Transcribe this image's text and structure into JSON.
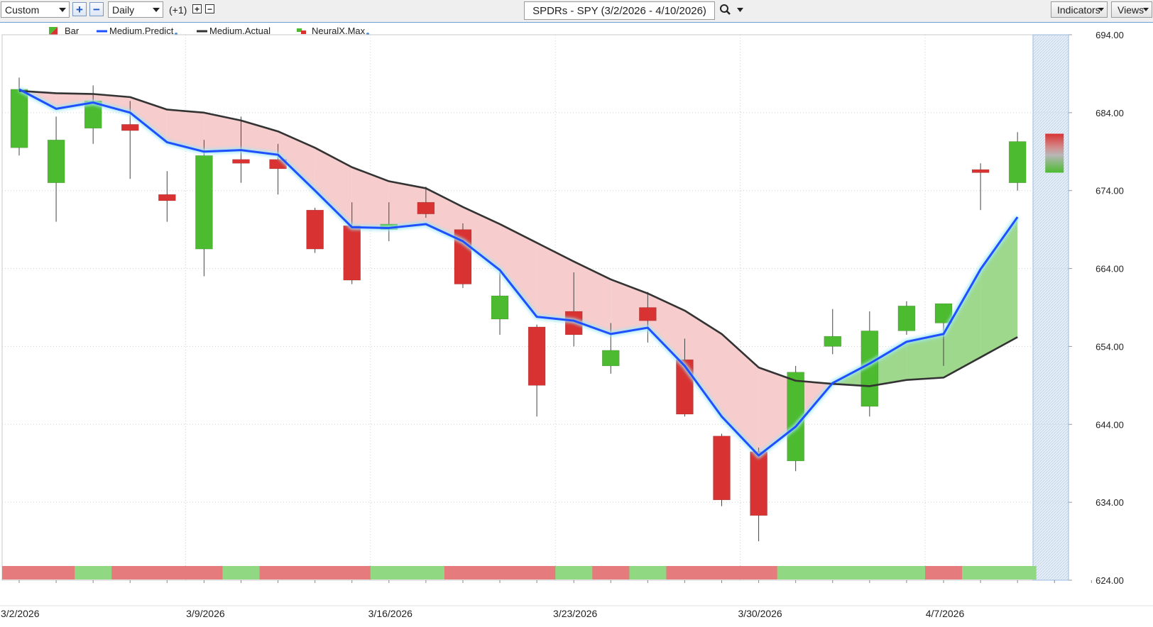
{
  "toolbar": {
    "range_select": "Custom",
    "zoom_in": "+",
    "zoom_out": "−",
    "interval_select": "Daily",
    "offset_label": "(+1)",
    "offset_plus": "+",
    "offset_minus": "−",
    "title": "SPDRs - SPY (3/2/2026 - 4/10/2026)",
    "search_icon": "⌕",
    "indicators_label": "Indicators",
    "views_label": "Views"
  },
  "legend": [
    {
      "label": "Bar",
      "icon": "bar-swatch-icon"
    },
    {
      "label": "Medium.Predict",
      "icon": "blue-line-icon",
      "has_dot": true
    },
    {
      "label": "Medium.Actual",
      "icon": "dark-line-icon"
    },
    {
      "label": "NeuralX.Max",
      "icon": "neuralx-swatch-icon",
      "has_dot": true
    }
  ],
  "colors": {
    "up": "#4cbb2f",
    "down": "#d93232",
    "predict_line": "#1f4fff",
    "actual_line": "#333333",
    "fill_above": "#f6cccc",
    "fill_below": "#9ed88d",
    "strip_red": "#e67b7e",
    "strip_green": "#90d882"
  },
  "chart_data": {
    "type": "candlestick",
    "ylim": [
      624,
      694
    ],
    "yticks": [
      "694.00",
      "684.00",
      "674.00",
      "664.00",
      "654.00",
      "644.00",
      "634.00",
      "624.00"
    ],
    "xtick_labels": [
      {
        "label": "3/2/2026",
        "index": 0
      },
      {
        "label": "3/9/2026",
        "index": 5
      },
      {
        "label": "3/16/2026",
        "index": 10
      },
      {
        "label": "3/23/2026",
        "index": 15
      },
      {
        "label": "3/30/2026",
        "index": 20
      },
      {
        "label": "4/7/2026",
        "index": 25
      }
    ],
    "candles": [
      {
        "o": 679.5,
        "h": 688.5,
        "l": 678.5,
        "c": 687.0
      },
      {
        "o": 675.0,
        "h": 683.5,
        "l": 670.0,
        "c": 680.5
      },
      {
        "o": 682.0,
        "h": 687.5,
        "l": 680.0,
        "c": 685.5
      },
      {
        "o": 682.5,
        "h": 685.5,
        "l": 675.5,
        "c": 681.7
      },
      {
        "o": 673.5,
        "h": 676.5,
        "l": 670.0,
        "c": 672.7
      },
      {
        "o": 666.5,
        "h": 680.5,
        "l": 663.0,
        "c": 678.5
      },
      {
        "o": 678.0,
        "h": 683.5,
        "l": 675.0,
        "c": 677.5
      },
      {
        "o": 678.0,
        "h": 680.0,
        "l": 673.5,
        "c": 676.8
      },
      {
        "o": 671.5,
        "h": 671.8,
        "l": 666.0,
        "c": 666.5
      },
      {
        "o": 669.5,
        "h": 672.5,
        "l": 662.0,
        "c": 662.5
      },
      {
        "o": 669.0,
        "h": 672.5,
        "l": 667.5,
        "c": 669.7
      },
      {
        "o": 672.5,
        "h": 674.5,
        "l": 670.5,
        "c": 671.0
      },
      {
        "o": 669.0,
        "h": 669.8,
        "l": 661.5,
        "c": 662.0
      },
      {
        "o": 657.5,
        "h": 663.5,
        "l": 655.5,
        "c": 660.5
      },
      {
        "o": 656.5,
        "h": 656.8,
        "l": 645.0,
        "c": 649.0
      },
      {
        "o": 658.5,
        "h": 663.5,
        "l": 654.0,
        "c": 655.5
      },
      {
        "o": 651.5,
        "h": 657.0,
        "l": 650.5,
        "c": 653.5
      },
      {
        "o": 659.0,
        "h": 661.0,
        "l": 654.5,
        "c": 657.3
      },
      {
        "o": 652.3,
        "h": 655.0,
        "l": 645.0,
        "c": 645.3
      },
      {
        "o": 642.5,
        "h": 642.8,
        "l": 633.5,
        "c": 634.3
      },
      {
        "o": 640.5,
        "h": 641.0,
        "l": 629.0,
        "c": 632.3
      },
      {
        "o": 639.3,
        "h": 651.5,
        "l": 638.0,
        "c": 650.7
      },
      {
        "o": 654.0,
        "h": 658.8,
        "l": 653.0,
        "c": 655.3
      },
      {
        "o": 646.3,
        "h": 658.5,
        "l": 645.0,
        "c": 656.0
      },
      {
        "o": 656.0,
        "h": 659.8,
        "l": 655.5,
        "c": 659.2
      },
      {
        "o": 657.0,
        "h": 659.5,
        "l": 651.5,
        "c": 659.5
      },
      {
        "o": 676.7,
        "h": 677.5,
        "l": 671.5,
        "c": 676.3
      },
      {
        "o": 675.0,
        "h": 681.5,
        "l": 674.0,
        "c": 680.3
      }
    ],
    "series": [
      {
        "name": "Medium.Predict",
        "values": [
          687.0,
          684.5,
          685.3,
          684.0,
          680.2,
          679.0,
          679.2,
          678.6,
          674.0,
          669.3,
          669.2,
          669.7,
          667.5,
          663.8,
          657.8,
          657.3,
          655.6,
          656.4,
          651.5,
          645.0,
          640.0,
          643.7,
          649.3,
          651.8,
          654.6,
          655.6,
          663.9,
          670.6
        ]
      },
      {
        "name": "Medium.Actual",
        "values": [
          686.8,
          686.5,
          686.4,
          686.0,
          684.4,
          684.0,
          683.0,
          681.6,
          679.5,
          677.0,
          675.2,
          674.3,
          671.9,
          669.7,
          667.3,
          664.9,
          662.6,
          660.8,
          658.6,
          655.6,
          651.3,
          649.6,
          649.2,
          648.9,
          649.7,
          650.0,
          652.6,
          655.2
        ]
      }
    ],
    "neuralx_bar": {
      "index": 28,
      "high": 681.3,
      "low": 676.3
    },
    "signal_strip": [
      "down",
      "down",
      "up",
      "down",
      "down",
      "down",
      "up",
      "down",
      "down",
      "down",
      "up",
      "up",
      "down",
      "down",
      "down",
      "up",
      "down",
      "up",
      "down",
      "down",
      "down",
      "up",
      "up",
      "up",
      "up",
      "down",
      "up",
      "up"
    ]
  }
}
